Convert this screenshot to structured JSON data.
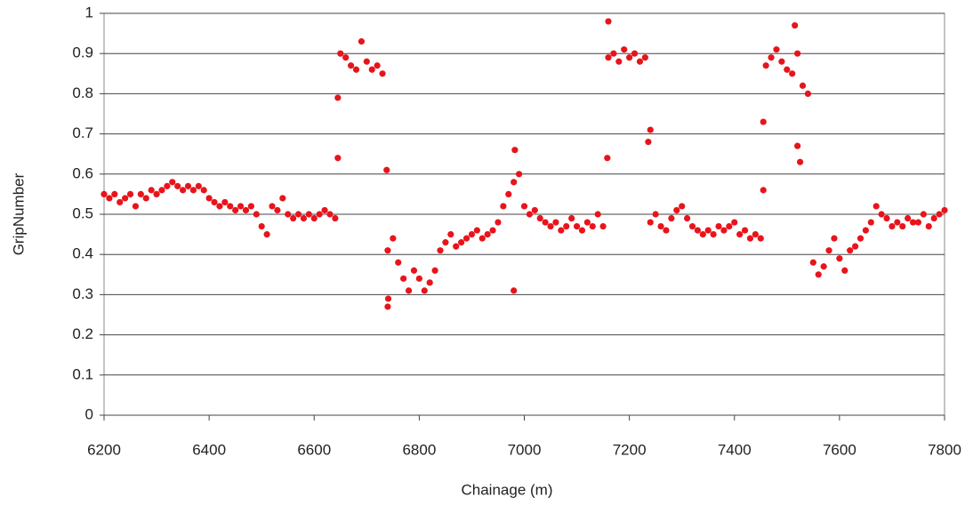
{
  "chart_data": {
    "type": "scatter",
    "xlabel": "Chainage (m)",
    "ylabel": "GripNumber",
    "color": "#e8141b",
    "xlim": [
      6200,
      7800
    ],
    "xticks": [
      6200,
      6400,
      6600,
      6800,
      7000,
      7200,
      7400,
      7600,
      7800
    ],
    "ylim": [
      0,
      1
    ],
    "yticks": [
      0,
      0.1,
      0.2,
      0.3,
      0.4,
      0.5,
      0.6,
      0.7,
      0.8,
      0.9,
      1
    ],
    "grid": true,
    "x": [
      6200,
      6210,
      6220,
      6230,
      6240,
      6250,
      6260,
      6270,
      6280,
      6290,
      6300,
      6310,
      6320,
      6330,
      6340,
      6350,
      6360,
      6370,
      6380,
      6390,
      6400,
      6410,
      6420,
      6430,
      6440,
      6450,
      6460,
      6470,
      6480,
      6490,
      6500,
      6510,
      6520,
      6530,
      6540,
      6550,
      6560,
      6570,
      6580,
      6590,
      6600,
      6610,
      6620,
      6630,
      6640,
      6650,
      6660,
      6670,
      6680,
      6690,
      6700,
      6710,
      6720,
      6730,
      6740,
      6750,
      6760,
      6770,
      6780,
      6790,
      6800,
      6810,
      6820,
      6830,
      6840,
      6850,
      6860,
      6870,
      6880,
      6890,
      6900,
      6910,
      6920,
      6930,
      6940,
      6950,
      6960,
      6970,
      6980,
      6990,
      7000,
      7010,
      7020,
      7030,
      7040,
      7050,
      7060,
      7070,
      7080,
      7090,
      7100,
      7110,
      7120,
      7130,
      7140,
      7150,
      7160,
      7170,
      7180,
      7190,
      7200,
      7210,
      7220,
      7230,
      7240,
      7250,
      7260,
      7270,
      7280,
      7290,
      7300,
      7310,
      7320,
      7330,
      7340,
      7350,
      7360,
      7370,
      7380,
      7390,
      7400,
      7410,
      7420,
      7430,
      7440,
      7450,
      7460,
      7470,
      7480,
      7490,
      7500,
      7510,
      7520,
      7530,
      7540,
      7550,
      7560,
      7570,
      7580,
      7590,
      7600,
      7610,
      7620,
      7630,
      7640,
      7650,
      7660,
      7670,
      7680,
      7690,
      7700,
      7710,
      7720,
      7730,
      7740,
      7750,
      7760,
      7770,
      7780,
      7790,
      7800,
      6645,
      6645,
      6738,
      6740,
      6741,
      6980,
      6982,
      7160,
      7158,
      7236,
      7240,
      7455,
      7455,
      7515,
      7520,
      7525
    ],
    "values": [
      0.55,
      0.54,
      0.55,
      0.53,
      0.54,
      0.55,
      0.52,
      0.55,
      0.54,
      0.56,
      0.55,
      0.56,
      0.57,
      0.58,
      0.57,
      0.56,
      0.57,
      0.56,
      0.57,
      0.56,
      0.54,
      0.53,
      0.52,
      0.53,
      0.52,
      0.51,
      0.52,
      0.51,
      0.52,
      0.5,
      0.47,
      0.45,
      0.52,
      0.51,
      0.54,
      0.5,
      0.49,
      0.5,
      0.49,
      0.5,
      0.49,
      0.5,
      0.51,
      0.5,
      0.49,
      0.9,
      0.89,
      0.87,
      0.86,
      0.93,
      0.88,
      0.86,
      0.87,
      0.85,
      0.41,
      0.44,
      0.38,
      0.34,
      0.31,
      0.36,
      0.34,
      0.31,
      0.33,
      0.36,
      0.41,
      0.43,
      0.45,
      0.42,
      0.43,
      0.44,
      0.45,
      0.46,
      0.44,
      0.45,
      0.46,
      0.48,
      0.52,
      0.55,
      0.58,
      0.6,
      0.52,
      0.5,
      0.51,
      0.49,
      0.48,
      0.47,
      0.48,
      0.46,
      0.47,
      0.49,
      0.47,
      0.46,
      0.48,
      0.47,
      0.5,
      0.47,
      0.89,
      0.9,
      0.88,
      0.91,
      0.89,
      0.9,
      0.88,
      0.89,
      0.48,
      0.5,
      0.47,
      0.46,
      0.49,
      0.51,
      0.52,
      0.49,
      0.47,
      0.46,
      0.45,
      0.46,
      0.45,
      0.47,
      0.46,
      0.47,
      0.48,
      0.45,
      0.46,
      0.44,
      0.45,
      0.44,
      0.87,
      0.89,
      0.91,
      0.88,
      0.86,
      0.85,
      0.9,
      0.82,
      0.8,
      0.38,
      0.35,
      0.37,
      0.41,
      0.44,
      0.39,
      0.36,
      0.41,
      0.42,
      0.44,
      0.46,
      0.48,
      0.52,
      0.5,
      0.49,
      0.47,
      0.48,
      0.47,
      0.49,
      0.48,
      0.48,
      0.5,
      0.47,
      0.49,
      0.5,
      0.51,
      0.64,
      0.79,
      0.61,
      0.27,
      0.29,
      0.31,
      0.66,
      0.98,
      0.64,
      0.68,
      0.71,
      0.56,
      0.73,
      0.97,
      0.67,
      0.63
    ]
  }
}
